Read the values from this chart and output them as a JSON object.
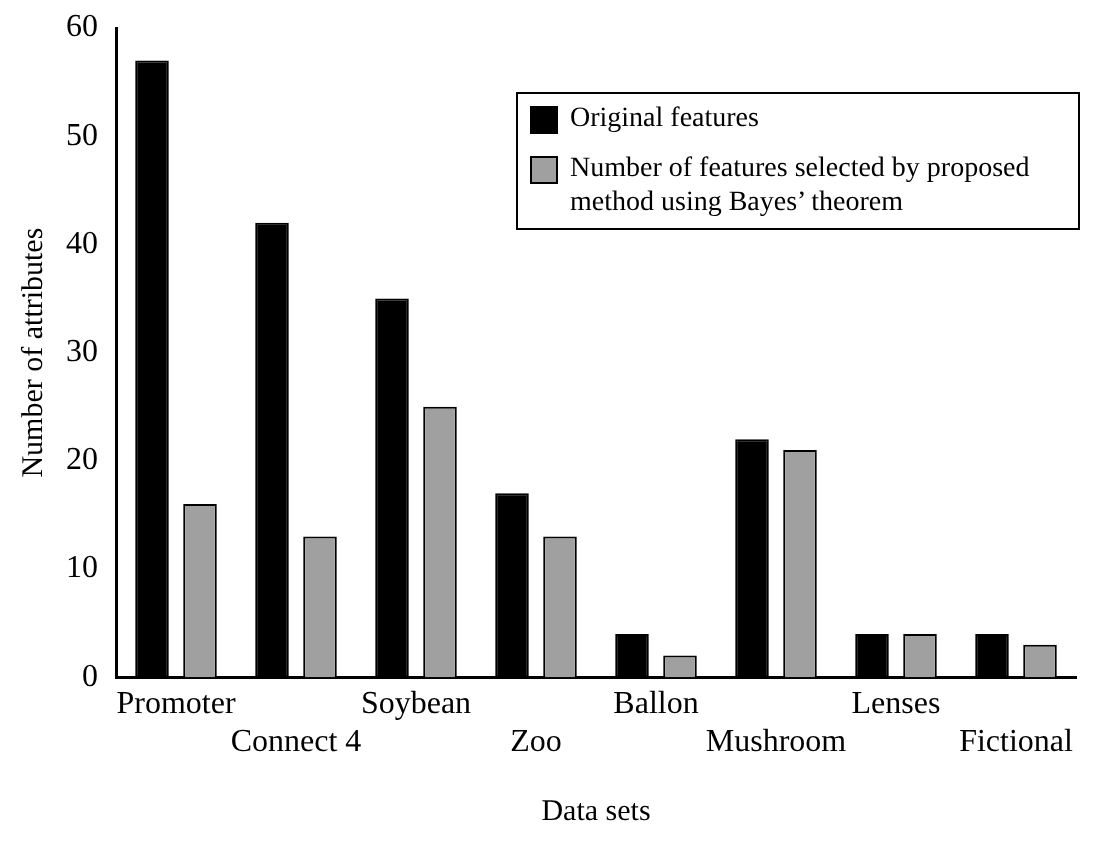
{
  "chart_data": {
    "type": "bar",
    "xlabel": "Data sets",
    "ylabel": "Number of attributes",
    "categories": [
      "Promoter",
      "Connect 4",
      "Soybean",
      "Zoo",
      "Ballon",
      "Mushroom",
      "Lenses",
      "Fictional"
    ],
    "series": [
      {
        "name": "Original features",
        "color": "#000000",
        "values": [
          57,
          42,
          35,
          17,
          4,
          22,
          4,
          4
        ]
      },
      {
        "name": "Number of features selected by proposed method using Bayes’ theorem",
        "color": "#a0a0a0",
        "values": [
          16,
          13,
          25,
          13,
          2,
          21,
          4,
          3
        ]
      }
    ],
    "ylim": [
      0,
      60
    ],
    "yticks": [
      0,
      10,
      20,
      30,
      40,
      50,
      60
    ],
    "grid": false,
    "legend": "top right"
  }
}
